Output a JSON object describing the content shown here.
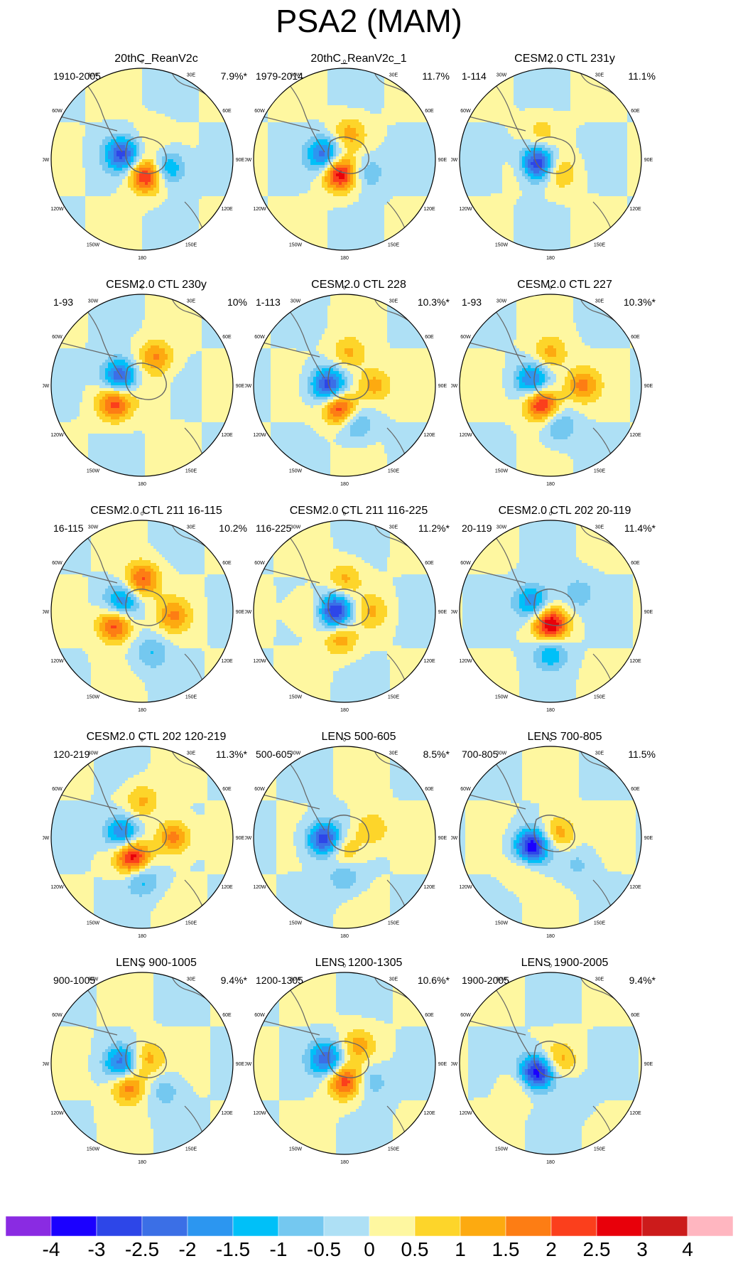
{
  "figure": {
    "title": "PSA2 (MAM)",
    "panels": [
      {
        "title": "20thC_ReanV2c",
        "period": "1910-2005",
        "percent": "7.9%*",
        "pattern": [
          [
            -0.22,
            -0.05,
            -2.6
          ],
          [
            0.05,
            0.18,
            2.7
          ],
          [
            0.28,
            0.1,
            -1.8
          ],
          [
            0.1,
            -0.25,
            0.4
          ]
        ]
      },
      {
        "title": "20thC_ReanV2c_1",
        "period": "1979-2014",
        "percent": "11.7%",
        "pattern": [
          [
            -0.22,
            -0.05,
            -2.4
          ],
          [
            -0.05,
            0.16,
            2.9
          ],
          [
            0.05,
            -0.28,
            1.2
          ],
          [
            0.25,
            0.15,
            -1.0
          ]
        ]
      },
      {
        "title": "CESM2.0 CTL 231y",
        "period": "1-114",
        "percent": "11.1%",
        "pattern": [
          [
            -0.15,
            0.05,
            -3.4
          ],
          [
            0.1,
            0.15,
            1.1
          ],
          [
            -0.1,
            -0.3,
            0.7
          ],
          [
            -0.3,
            0.1,
            0.6
          ]
        ]
      },
      {
        "title": "CESM2.0 CTL 230y",
        "period": "1-93",
        "percent": "10%",
        "pattern": [
          [
            -0.25,
            -0.1,
            -2.6
          ],
          [
            -0.3,
            0.2,
            2.2
          ],
          [
            0.15,
            -0.3,
            1.6
          ],
          [
            0.1,
            0.1,
            0.5
          ]
        ]
      },
      {
        "title": "CESM2.0 CTL 228",
        "period": "1-113",
        "percent": "10.3%*",
        "pattern": [
          [
            -0.18,
            0.0,
            -2.9
          ],
          [
            -0.05,
            0.25,
            2.6
          ],
          [
            0.05,
            -0.35,
            1.1
          ],
          [
            0.32,
            0.0,
            1.3
          ],
          [
            0.12,
            0.42,
            -1.2
          ]
        ]
      },
      {
        "title": "CESM2.0 CTL 227",
        "period": "1-93",
        "percent": "10.3%*",
        "pattern": [
          [
            -0.2,
            -0.05,
            -2.2
          ],
          [
            -0.1,
            0.2,
            2.8
          ],
          [
            0.0,
            -0.35,
            1.2
          ],
          [
            0.35,
            0.0,
            1.6
          ],
          [
            0.1,
            0.45,
            -1.1
          ]
        ]
      },
      {
        "title": "CESM2.0 CTL 211 16-115",
        "period": "16-115",
        "percent": "10.2%",
        "pattern": [
          [
            -0.22,
            -0.1,
            -1.9
          ],
          [
            -0.3,
            0.15,
            2.4
          ],
          [
            0.0,
            -0.35,
            2.1
          ],
          [
            0.35,
            0.05,
            1.5
          ],
          [
            0.1,
            0.45,
            -1.0
          ]
        ]
      },
      {
        "title": "CESM2.0 CTL 211 116-225",
        "period": "116-225",
        "percent": "11.2%*",
        "pattern": [
          [
            -0.1,
            0.0,
            -3.2
          ],
          [
            -0.05,
            0.3,
            1.3
          ],
          [
            0.0,
            -0.35,
            1.1
          ],
          [
            0.3,
            0.0,
            1.0
          ],
          [
            -0.4,
            0.0,
            0.8
          ]
        ]
      },
      {
        "title": "CESM2.0 CTL 202 20-119",
        "period": "20-119",
        "percent": "11.4%*",
        "pattern": [
          [
            -0.2,
            -0.1,
            -2.0
          ],
          [
            0.0,
            0.15,
            3.1
          ],
          [
            0.0,
            0.45,
            -1.5
          ],
          [
            0.3,
            -0.2,
            -0.8
          ]
        ]
      },
      {
        "title": "CESM2.0 CTL 202 120-219",
        "period": "120-219",
        "percent": "11.3%*",
        "pattern": [
          [
            -0.22,
            -0.05,
            -2.2
          ],
          [
            -0.1,
            0.22,
            2.9
          ],
          [
            0.0,
            -0.4,
            1.1
          ],
          [
            0.35,
            0.0,
            1.8
          ],
          [
            0.0,
            0.45,
            -1.3
          ]
        ]
      },
      {
        "title": "LENS 500-605",
        "period": "500-605",
        "percent": "8.5%*",
        "pattern": [
          [
            -0.22,
            0.02,
            -3.0
          ],
          [
            0.0,
            0.15,
            1.2
          ],
          [
            0.3,
            -0.1,
            1.1
          ],
          [
            0.0,
            0.42,
            -1.0
          ]
        ]
      },
      {
        "title": "LENS 700-805",
        "period": "700-805",
        "percent": "11.5%",
        "pattern": [
          [
            -0.2,
            0.1,
            -3.4
          ],
          [
            0.08,
            -0.05,
            1.4
          ],
          [
            -0.3,
            0.35,
            0.6
          ],
          [
            0.3,
            0.3,
            -0.6
          ]
        ]
      },
      {
        "title": "LENS 900-1005",
        "period": "900-1005",
        "percent": "9.4%*",
        "pattern": [
          [
            -0.22,
            0.0,
            -2.3
          ],
          [
            -0.15,
            0.25,
            1.9
          ],
          [
            0.05,
            -0.05,
            1.3
          ],
          [
            0.25,
            0.3,
            -0.8
          ]
        ]
      },
      {
        "title": "LENS 1200-1305",
        "period": "1200-1305",
        "percent": "10.6%*",
        "pattern": [
          [
            -0.2,
            -0.05,
            -2.4
          ],
          [
            0.0,
            0.2,
            2.3
          ],
          [
            0.15,
            -0.2,
            1.2
          ],
          [
            0.3,
            0.2,
            -0.9
          ]
        ]
      },
      {
        "title": "LENS 1900-2005",
        "period": "1900-2005",
        "percent": "9.4%*",
        "pattern": [
          [
            -0.15,
            0.1,
            -3.5
          ],
          [
            0.1,
            -0.05,
            1.1
          ],
          [
            -0.35,
            0.25,
            0.7
          ],
          [
            0.25,
            0.35,
            -0.5
          ]
        ]
      }
    ],
    "longitude_labels": [
      "0",
      "30E",
      "60E",
      "90E",
      "120E",
      "150E",
      "180",
      "150W",
      "120W",
      "90W",
      "60W",
      "30W"
    ],
    "colorbar": {
      "labels": [
        "-4",
        "-3",
        "-2.5",
        "-2",
        "-1.5",
        "-1",
        "-0.5",
        "0",
        "0.5",
        "1",
        "1.5",
        "2",
        "2.5",
        "3",
        "4"
      ],
      "levels": [
        -4,
        -3,
        -2.5,
        -2,
        -1.5,
        -1,
        -0.5,
        0,
        0.5,
        1,
        1.5,
        2,
        2.5,
        3,
        4
      ],
      "colors": [
        "#8a2be2",
        "#1b00ff",
        "#2d46e8",
        "#3b6fe6",
        "#2c96f0",
        "#00c0f8",
        "#74c8f0",
        "#aee0f5",
        "#fef7a0",
        "#fdd52a",
        "#fdaa10",
        "#fd7d14",
        "#fb3f1c",
        "#e8000a",
        "#cc1b1b",
        "#ffb6c0"
      ]
    }
  }
}
